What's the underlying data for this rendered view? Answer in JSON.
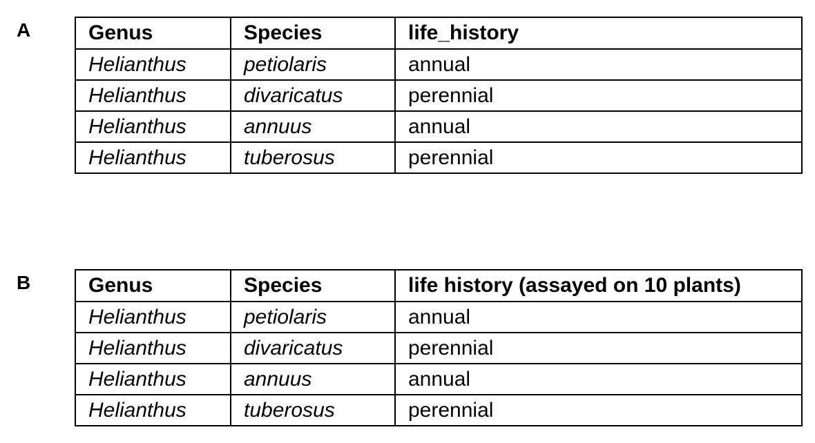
{
  "panels": [
    {
      "label": "A",
      "headers": [
        "Genus",
        "Species",
        "life_history"
      ],
      "rows": [
        [
          "Helianthus",
          "petiolaris",
          "annual"
        ],
        [
          "Helianthus",
          "divaricatus",
          "perennial"
        ],
        [
          "Helianthus",
          "annuus",
          "annual"
        ],
        [
          "Helianthus",
          "tuberosus",
          "perennial"
        ]
      ]
    },
    {
      "label": "B",
      "headers": [
        "Genus",
        "Species",
        "life history (assayed on 10 plants)"
      ],
      "rows": [
        [
          "Helianthus",
          "petiolaris",
          "annual"
        ],
        [
          "Helianthus",
          "divaricatus",
          "perennial"
        ],
        [
          "Helianthus",
          "annuus",
          "annual"
        ],
        [
          "Helianthus",
          "tuberosus",
          "perennial"
        ]
      ]
    }
  ]
}
